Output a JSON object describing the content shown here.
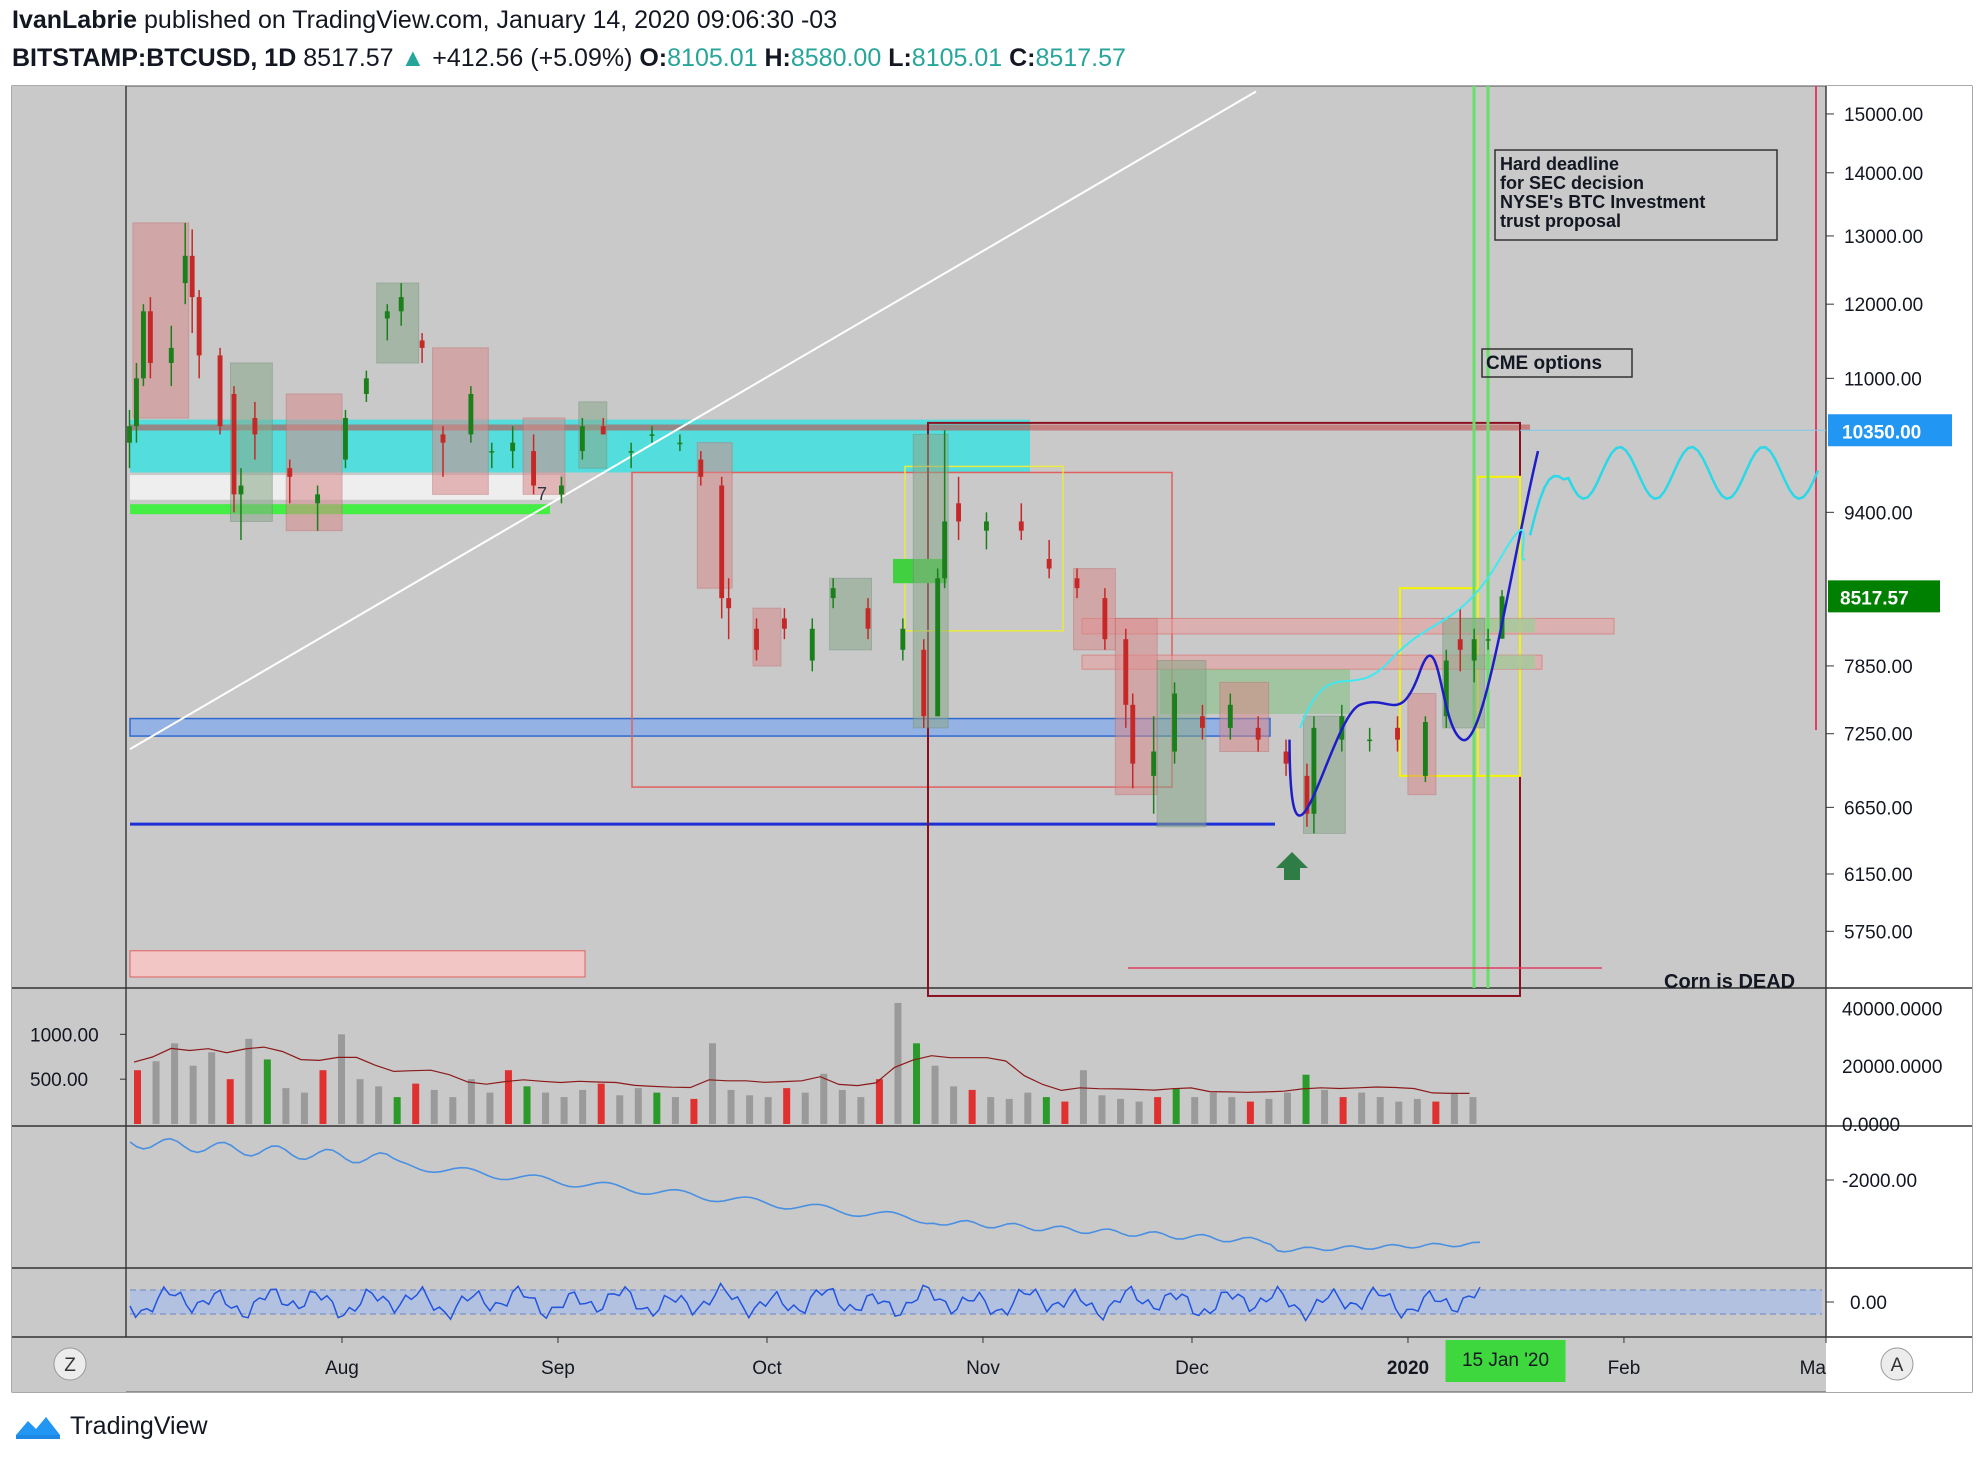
{
  "header": {
    "author": "IvanLabrie",
    "published_text": "published on TradingView.com, January 14, 2020 09:06:30 -03",
    "symbol": "BITSTAMP:BTCUSD, 1D",
    "last": "8517.57",
    "change": "+412.56 (+5.09%)",
    "o_label": "O:",
    "o": "8105.01",
    "h_label": "H:",
    "h": "8580.00",
    "l_label": "L:",
    "l": "8105.01",
    "c_label": "C:",
    "c": "8517.57"
  },
  "footer": {
    "brand": "TradingView"
  },
  "colors": {
    "up": "#26a69a",
    "down": "#ef5350",
    "accent_blue": "#2196f3",
    "price_green": "#008000",
    "panel_bg": "#c9c9c9"
  },
  "chart_data": [
    {
      "type": "candlestick",
      "title": "BITSTAMP:BTCUSD, 1D",
      "price_axis_labels": [
        "15000.00",
        "14000.00",
        "13000.00",
        "12000.00",
        "11000.00",
        "10350.00",
        "9400.00",
        "8517.57",
        "7850.00",
        "7250.00",
        "6650.00",
        "6150.00",
        "5750.00"
      ],
      "price_ticks": [
        15000,
        14000,
        13000,
        12000,
        11000,
        9400,
        7850,
        7250,
        6650,
        6150,
        5750
      ],
      "ylim": [
        5380,
        15500
      ],
      "scale": "log",
      "x_ticks": [
        "Aug",
        "Sep",
        "Oct",
        "Nov",
        "Dec",
        "2020",
        "Feb",
        "Ma"
      ],
      "x_range": [
        "2019-07-01",
        "2020-03-01"
      ],
      "last_price": 8517.57,
      "last_price_label": "8517.57",
      "marked_level": 10350,
      "marked_level_label": "10350.00",
      "marked_date_label": "15 Jan '20",
      "candles_approx": [
        {
          "date": "2019-07-01",
          "o": 10200,
          "h": 10600,
          "l": 9900,
          "c": 10400
        },
        {
          "date": "2019-07-02",
          "o": 10400,
          "h": 11200,
          "l": 10200,
          "c": 11000
        },
        {
          "date": "2019-07-03",
          "o": 11000,
          "h": 12000,
          "l": 10900,
          "c": 11900
        },
        {
          "date": "2019-07-04",
          "o": 11900,
          "h": 12100,
          "l": 11000,
          "c": 11200
        },
        {
          "date": "2019-07-07",
          "o": 11200,
          "h": 11700,
          "l": 10900,
          "c": 11400
        },
        {
          "date": "2019-07-09",
          "o": 12300,
          "h": 13200,
          "l": 12000,
          "c": 12700
        },
        {
          "date": "2019-07-10",
          "o": 12700,
          "h": 13100,
          "l": 11600,
          "c": 12100
        },
        {
          "date": "2019-07-11",
          "o": 12100,
          "h": 12200,
          "l": 11000,
          "c": 11300
        },
        {
          "date": "2019-07-14",
          "o": 11300,
          "h": 11400,
          "l": 10300,
          "c": 10400
        },
        {
          "date": "2019-07-16",
          "o": 10800,
          "h": 10900,
          "l": 9400,
          "c": 9600
        },
        {
          "date": "2019-07-17",
          "o": 9600,
          "h": 9900,
          "l": 9100,
          "c": 9700
        },
        {
          "date": "2019-07-19",
          "o": 10500,
          "h": 10700,
          "l": 10000,
          "c": 10300
        },
        {
          "date": "2019-07-24",
          "o": 9900,
          "h": 10000,
          "l": 9500,
          "c": 9800
        },
        {
          "date": "2019-07-28",
          "o": 9500,
          "h": 9700,
          "l": 9200,
          "c": 9600
        },
        {
          "date": "2019-08-01",
          "o": 10000,
          "h": 10600,
          "l": 9900,
          "c": 10500
        },
        {
          "date": "2019-08-04",
          "o": 10800,
          "h": 11100,
          "l": 10700,
          "c": 11000
        },
        {
          "date": "2019-08-07",
          "o": 11800,
          "h": 12000,
          "l": 11500,
          "c": 11900
        },
        {
          "date": "2019-08-09",
          "o": 11900,
          "h": 12300,
          "l": 11700,
          "c": 12100
        },
        {
          "date": "2019-08-12",
          "o": 11500,
          "h": 11600,
          "l": 11200,
          "c": 11400
        },
        {
          "date": "2019-08-15",
          "o": 10300,
          "h": 10400,
          "l": 9800,
          "c": 10200
        },
        {
          "date": "2019-08-19",
          "o": 10300,
          "h": 10900,
          "l": 10200,
          "c": 10800
        },
        {
          "date": "2019-08-22",
          "o": 10100,
          "h": 10200,
          "l": 9900,
          "c": 10100
        },
        {
          "date": "2019-08-25",
          "o": 10100,
          "h": 10400,
          "l": 9900,
          "c": 10200
        },
        {
          "date": "2019-08-28",
          "o": 10100,
          "h": 10300,
          "l": 9600,
          "c": 9700
        },
        {
          "date": "2019-09-01",
          "o": 9600,
          "h": 9800,
          "l": 9500,
          "c": 9700
        },
        {
          "date": "2019-09-04",
          "o": 10100,
          "h": 10500,
          "l": 10000,
          "c": 10400
        },
        {
          "date": "2019-09-07",
          "o": 10400,
          "h": 10500,
          "l": 10300,
          "c": 10300
        },
        {
          "date": "2019-09-11",
          "o": 10100,
          "h": 10200,
          "l": 9900,
          "c": 10100
        },
        {
          "date": "2019-09-14",
          "o": 10300,
          "h": 10400,
          "l": 10200,
          "c": 10300
        },
        {
          "date": "2019-09-18",
          "o": 10200,
          "h": 10300,
          "l": 10100,
          "c": 10200
        },
        {
          "date": "2019-09-21",
          "o": 10000,
          "h": 10100,
          "l": 9700,
          "c": 9800
        },
        {
          "date": "2019-09-24",
          "o": 9700,
          "h": 9800,
          "l": 8300,
          "c": 8500
        },
        {
          "date": "2019-09-25",
          "o": 8500,
          "h": 8700,
          "l": 8100,
          "c": 8400
        },
        {
          "date": "2019-09-29",
          "o": 8200,
          "h": 8300,
          "l": 7900,
          "c": 8000
        },
        {
          "date": "2019-10-03",
          "o": 8300,
          "h": 8400,
          "l": 8100,
          "c": 8200
        },
        {
          "date": "2019-10-07",
          "o": 7900,
          "h": 8300,
          "l": 7800,
          "c": 8200
        },
        {
          "date": "2019-10-10",
          "o": 8500,
          "h": 8700,
          "l": 8400,
          "c": 8600
        },
        {
          "date": "2019-10-15",
          "o": 8400,
          "h": 8500,
          "l": 8100,
          "c": 8200
        },
        {
          "date": "2019-10-20",
          "o": 8000,
          "h": 8300,
          "l": 7900,
          "c": 8200
        },
        {
          "date": "2019-10-23",
          "o": 8000,
          "h": 8100,
          "l": 7300,
          "c": 7400
        },
        {
          "date": "2019-10-25",
          "o": 7400,
          "h": 8800,
          "l": 7400,
          "c": 8700
        },
        {
          "date": "2019-10-26",
          "o": 8700,
          "h": 10350,
          "l": 8600,
          "c": 9300
        },
        {
          "date": "2019-10-28",
          "o": 9500,
          "h": 9800,
          "l": 9100,
          "c": 9300
        },
        {
          "date": "2019-11-01",
          "o": 9200,
          "h": 9400,
          "l": 9000,
          "c": 9300
        },
        {
          "date": "2019-11-06",
          "o": 9300,
          "h": 9500,
          "l": 9100,
          "c": 9200
        },
        {
          "date": "2019-11-10",
          "o": 8900,
          "h": 9100,
          "l": 8700,
          "c": 8800
        },
        {
          "date": "2019-11-14",
          "o": 8700,
          "h": 8800,
          "l": 8500,
          "c": 8600
        },
        {
          "date": "2019-11-18",
          "o": 8500,
          "h": 8600,
          "l": 8000,
          "c": 8100
        },
        {
          "date": "2019-11-21",
          "o": 8100,
          "h": 8200,
          "l": 7300,
          "c": 7500
        },
        {
          "date": "2019-11-22",
          "o": 7500,
          "h": 7600,
          "l": 6800,
          "c": 7000
        },
        {
          "date": "2019-11-25",
          "o": 6900,
          "h": 7400,
          "l": 6600,
          "c": 7100
        },
        {
          "date": "2019-11-28",
          "o": 7100,
          "h": 7700,
          "l": 7000,
          "c": 7600
        },
        {
          "date": "2019-12-02",
          "o": 7400,
          "h": 7500,
          "l": 7200,
          "c": 7300
        },
        {
          "date": "2019-12-06",
          "o": 7300,
          "h": 7600,
          "l": 7200,
          "c": 7500
        },
        {
          "date": "2019-12-10",
          "o": 7300,
          "h": 7400,
          "l": 7100,
          "c": 7200
        },
        {
          "date": "2019-12-14",
          "o": 7100,
          "h": 7200,
          "l": 6900,
          "c": 7000
        },
        {
          "date": "2019-12-17",
          "o": 6900,
          "h": 7000,
          "l": 6500,
          "c": 6600
        },
        {
          "date": "2019-12-18",
          "o": 6600,
          "h": 7400,
          "l": 6450,
          "c": 7300
        },
        {
          "date": "2019-12-22",
          "o": 7200,
          "h": 7500,
          "l": 7100,
          "c": 7400
        },
        {
          "date": "2019-12-26",
          "o": 7200,
          "h": 7300,
          "l": 7100,
          "c": 7200
        },
        {
          "date": "2019-12-30",
          "o": 7300,
          "h": 7400,
          "l": 7100,
          "c": 7200
        },
        {
          "date": "2020-01-03",
          "o": 6900,
          "h": 7400,
          "l": 6850,
          "c": 7350
        },
        {
          "date": "2020-01-06",
          "o": 7400,
          "h": 8000,
          "l": 7300,
          "c": 7900
        },
        {
          "date": "2020-01-08",
          "o": 8100,
          "h": 8400,
          "l": 7800,
          "c": 8000
        },
        {
          "date": "2020-01-10",
          "o": 7900,
          "h": 8200,
          "l": 7700,
          "c": 8100
        },
        {
          "date": "2020-01-12",
          "o": 8100,
          "h": 8200,
          "l": 8000,
          "c": 8100
        },
        {
          "date": "2020-01-14",
          "o": 8105.01,
          "h": 8580,
          "l": 8105.01,
          "c": 8517.57
        }
      ],
      "annotations": [
        {
          "text": "Hard deadline\nfor SEC decision\nNYSE's BTC Investment\ntrust proposal"
        },
        {
          "text": "CME options"
        },
        {
          "text": "Corn is DEAD"
        },
        {
          "text": "7"
        }
      ]
    },
    {
      "type": "bar",
      "title": "Volume",
      "left_axis_labels": [
        "1000.00",
        "500.00"
      ],
      "right_axis_labels": [
        "40000.0000",
        "20000.0000",
        "0.0000"
      ],
      "values_approx": [
        600,
        700,
        900,
        650,
        800,
        500,
        950,
        720,
        400,
        350,
        600,
        1000,
        500,
        420,
        300,
        450,
        380,
        300,
        500,
        350,
        600,
        420,
        350,
        300,
        380,
        450,
        320,
        400,
        350,
        300,
        280,
        900,
        380,
        320,
        300,
        400,
        350,
        560,
        380,
        300,
        500,
        1350,
        900,
        650,
        420,
        380,
        300,
        280,
        350,
        300,
        250,
        600,
        320,
        280,
        250,
        300,
        400,
        300,
        350,
        300,
        250,
        280,
        350,
        550,
        380,
        300,
        350,
        300,
        250,
        280,
        250,
        350,
        300
      ]
    },
    {
      "type": "line",
      "title": "Cumulative indicator",
      "right_axis_labels": [
        "-2000.00"
      ]
    },
    {
      "type": "line",
      "title": "Oscillator",
      "right_axis_labels": [
        "0.00"
      ]
    }
  ]
}
